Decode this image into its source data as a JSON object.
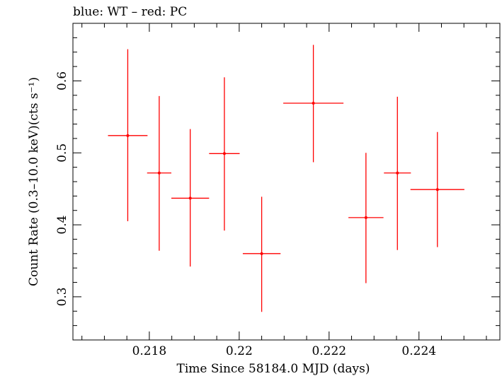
{
  "chart_data": {
    "type": "scatter",
    "title": "blue: WT – red: PC",
    "xlabel": "Time Since 58184.0 MJD (days)",
    "ylabel": "Count Rate (0.3–10.0 keV)(cts s⁻¹)",
    "xlim": [
      0.2163,
      0.2258
    ],
    "ylim": [
      0.24,
      0.68
    ],
    "xticks": [
      0.218,
      0.22,
      0.222,
      0.224
    ],
    "xtick_labels": [
      "0.218",
      "0.22",
      "0.222",
      "0.224"
    ],
    "yticks": [
      0.3,
      0.4,
      0.5,
      0.6
    ],
    "ytick_labels": [
      "0.3",
      "0.4",
      "0.5",
      "0.6"
    ],
    "grid": false,
    "colors": {
      "PC": "#ff0000",
      "WT": "#0000ff",
      "axes": "#000000"
    },
    "series": [
      {
        "color": "#ff0000",
        "points": [
          {
            "x": 0.21752,
            "xerr": 0.00044,
            "y": 0.524,
            "yerr_low": 0.119,
            "yerr_high": 0.12
          },
          {
            "x": 0.21822,
            "xerr": 0.00027,
            "y": 0.472,
            "yerr_low": 0.108,
            "yerr_high": 0.107
          },
          {
            "x": 0.21891,
            "xerr": 0.00042,
            "y": 0.437,
            "yerr_low": 0.095,
            "yerr_high": 0.096
          },
          {
            "x": 0.21967,
            "xerr": 0.00034,
            "y": 0.499,
            "yerr_low": 0.107,
            "yerr_high": 0.106
          },
          {
            "x": 0.2205,
            "xerr": 0.00042,
            "y": 0.36,
            "yerr_low": 0.081,
            "yerr_high": 0.079
          },
          {
            "x": 0.22165,
            "xerr": 0.00067,
            "y": 0.569,
            "yerr_low": 0.082,
            "yerr_high": 0.081
          },
          {
            "x": 0.22282,
            "xerr": 0.00039,
            "y": 0.41,
            "yerr_low": 0.091,
            "yerr_high": 0.09
          },
          {
            "x": 0.22352,
            "xerr": 0.0003,
            "y": 0.472,
            "yerr_low": 0.107,
            "yerr_high": 0.106
          },
          {
            "x": 0.22441,
            "xerr": 0.0006,
            "y": 0.449,
            "yerr_low": 0.08,
            "yerr_high": 0.08
          }
        ]
      }
    ]
  }
}
